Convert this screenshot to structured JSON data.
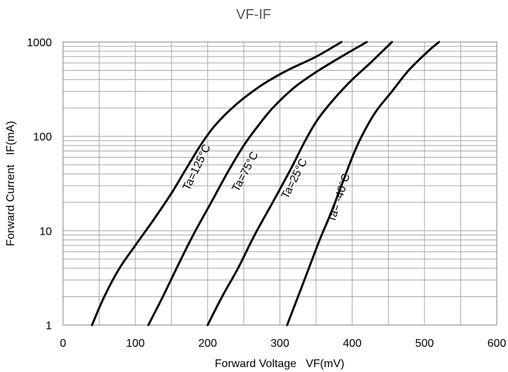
{
  "chart_data": {
    "type": "line",
    "title": "VF-IF",
    "xlabel": "Forward Voltage   VF(mV)",
    "ylabel": "Forward Current   IF(mA)",
    "xlim": [
      0,
      600
    ],
    "ylim": [
      1,
      1000
    ],
    "yscale": "log",
    "grid": true,
    "x_ticks": [
      "0",
      "100",
      "200",
      "300",
      "400",
      "500",
      "600"
    ],
    "y_ticks": [
      "1",
      "10",
      "100",
      "1000"
    ],
    "series": [
      {
        "name": "Ta=125°C",
        "points": [
          [
            40,
            1
          ],
          [
            57,
            2
          ],
          [
            78,
            4
          ],
          [
            100,
            7
          ],
          [
            125,
            13
          ],
          [
            150,
            25
          ],
          [
            170,
            45
          ],
          [
            190,
            80
          ],
          [
            210,
            130
          ],
          [
            240,
            220
          ],
          [
            275,
            350
          ],
          [
            310,
            500
          ],
          [
            350,
            700
          ],
          [
            385,
            1000
          ]
        ]
      },
      {
        "name": "Ta=75°C",
        "points": [
          [
            118,
            1
          ],
          [
            138,
            2
          ],
          [
            157,
            4
          ],
          [
            180,
            9
          ],
          [
            205,
            20
          ],
          [
            228,
            42
          ],
          [
            250,
            80
          ],
          [
            270,
            130
          ],
          [
            290,
            200
          ],
          [
            320,
            330
          ],
          [
            350,
            480
          ],
          [
            385,
            700
          ],
          [
            420,
            1000
          ]
        ]
      },
      {
        "name": "Ta=25°C",
        "points": [
          [
            200,
            1
          ],
          [
            220,
            2
          ],
          [
            242,
            4
          ],
          [
            265,
            9
          ],
          [
            290,
            20
          ],
          [
            315,
            45
          ],
          [
            335,
            90
          ],
          [
            352,
            150
          ],
          [
            375,
            250
          ],
          [
            400,
            400
          ],
          [
            425,
            600
          ],
          [
            455,
            1000
          ]
        ]
      },
      {
        "name": "Ta= -40°C",
        "points": [
          [
            310,
            1
          ],
          [
            325,
            2
          ],
          [
            340,
            4
          ],
          [
            355,
            8
          ],
          [
            370,
            15
          ],
          [
            385,
            30
          ],
          [
            400,
            60
          ],
          [
            413,
            100
          ],
          [
            432,
            180
          ],
          [
            455,
            300
          ],
          [
            478,
            500
          ],
          [
            505,
            800
          ],
          [
            520,
            1000
          ]
        ]
      }
    ]
  }
}
